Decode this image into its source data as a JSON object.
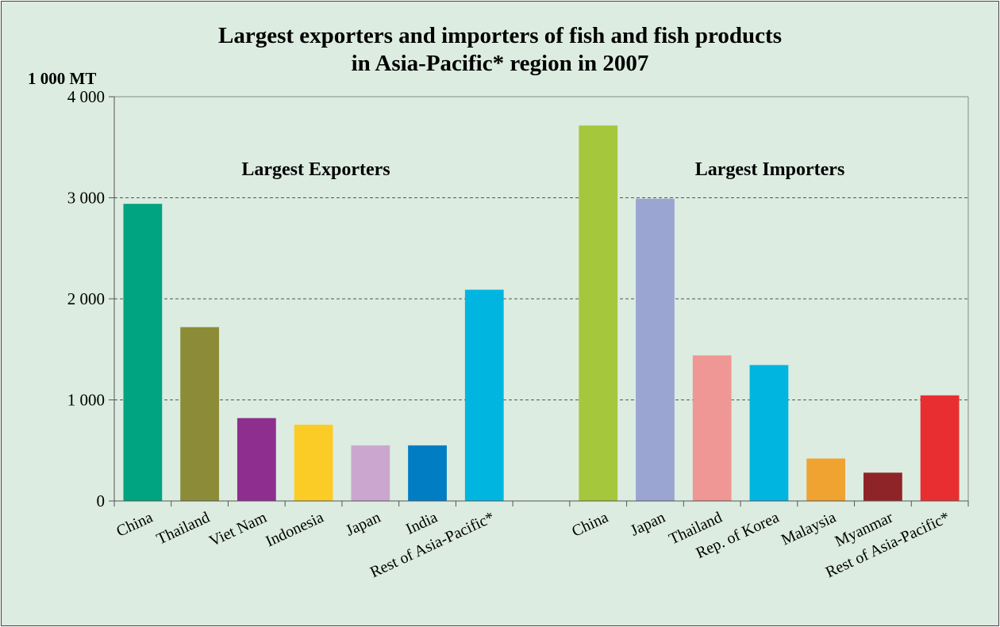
{
  "chart_data": {
    "type": "bar",
    "title_lines": [
      "Largest exporters and importers of fish and fish products",
      "in Asia-Pacific* region in 2007"
    ],
    "ylabel": "1 000 MT",
    "ylim": [
      0,
      4000
    ],
    "yticks": [
      0,
      1000,
      2000,
      3000,
      4000
    ],
    "ytick_labels": [
      "0",
      "1 000",
      "2 000",
      "3 000",
      "4 000"
    ],
    "grid": true,
    "groups": [
      {
        "name": "Largest Exporters",
        "categories": [
          "China",
          "Thailand",
          "Viet Nam",
          "Indonesia",
          "Japan",
          "India",
          "Rest of Asia-Pacific*"
        ],
        "values": [
          2940,
          1720,
          820,
          755,
          550,
          550,
          2090
        ],
        "colors": [
          "#00a480",
          "#8c8c38",
          "#8e2e8f",
          "#fccc26",
          "#cba7cf",
          "#007dc3",
          "#00b6e0"
        ]
      },
      {
        "name": "Largest Importers",
        "categories": [
          "China",
          "Japan",
          "Thailand",
          "Rep. of Korea",
          "Malaysia",
          "Myanmar",
          "Rest of Asia-Pacific*"
        ],
        "values": [
          3715,
          2990,
          1440,
          1345,
          420,
          280,
          1045
        ],
        "colors": [
          "#a5c73c",
          "#9aa5d2",
          "#ef9794",
          "#00b6e0",
          "#f0a331",
          "#8f2428",
          "#e92e31"
        ]
      }
    ]
  }
}
